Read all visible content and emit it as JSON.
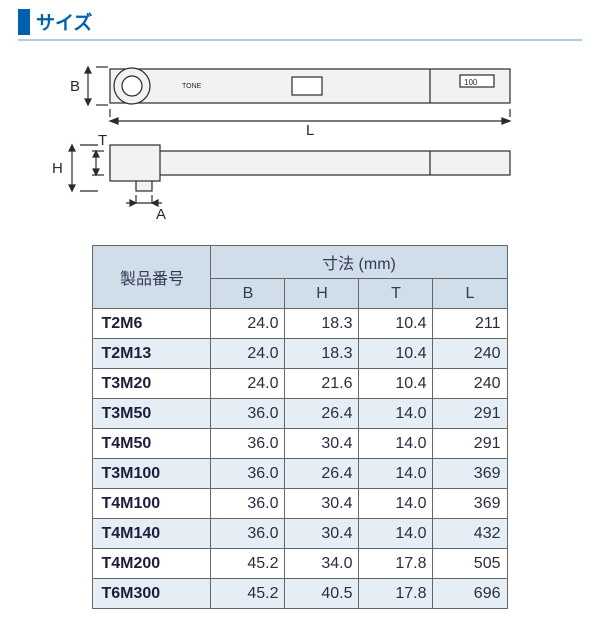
{
  "title": "サイズ",
  "colors": {
    "accent": "#0060b0",
    "title_line": "#b0cde5",
    "header_bg": "#d0deea",
    "band_bg": "#e6eef5",
    "border": "#666666",
    "text": "#2c2c40",
    "head_text": "#333a55",
    "drawing_fill": "#f0f2f4",
    "drawing_stroke": "#2a2a2a"
  },
  "drawing_labels": {
    "B": "B",
    "H": "H",
    "T": "T",
    "A": "A",
    "L": "L",
    "badge1": "TONE",
    "badge2": "100"
  },
  "table": {
    "header_model": "製品番号",
    "header_dims": "寸法 (mm)",
    "columns": [
      "B",
      "H",
      "T",
      "L"
    ],
    "rows": [
      {
        "model": "T2M6",
        "b": "24.0",
        "h": "18.3",
        "t": "10.4",
        "l": "211"
      },
      {
        "model": "T2M13",
        "b": "24.0",
        "h": "18.3",
        "t": "10.4",
        "l": "240"
      },
      {
        "model": "T3M20",
        "b": "24.0",
        "h": "21.6",
        "t": "10.4",
        "l": "240"
      },
      {
        "model": "T3M50",
        "b": "36.0",
        "h": "26.4",
        "t": "14.0",
        "l": "291"
      },
      {
        "model": "T4M50",
        "b": "36.0",
        "h": "30.4",
        "t": "14.0",
        "l": "291"
      },
      {
        "model": "T3M100",
        "b": "36.0",
        "h": "26.4",
        "t": "14.0",
        "l": "369"
      },
      {
        "model": "T4M100",
        "b": "36.0",
        "h": "30.4",
        "t": "14.0",
        "l": "369"
      },
      {
        "model": "T4M140",
        "b": "36.0",
        "h": "30.4",
        "t": "14.0",
        "l": "432"
      },
      {
        "model": "T4M200",
        "b": "45.2",
        "h": "34.0",
        "t": "17.8",
        "l": "505"
      },
      {
        "model": "T6M300",
        "b": "45.2",
        "h": "40.5",
        "t": "17.8",
        "l": "696"
      }
    ]
  }
}
